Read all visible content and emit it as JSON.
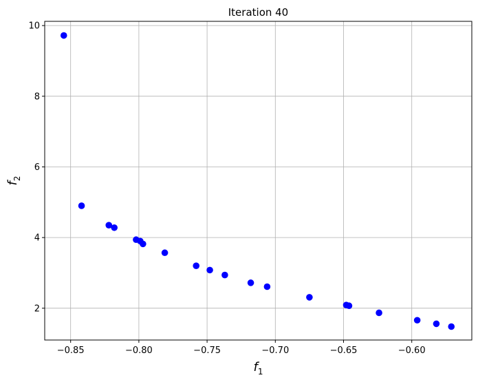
{
  "chart_data": {
    "type": "scatter",
    "title": "Iteration 40",
    "xlabel": {
      "base": "f",
      "sub": "1"
    },
    "ylabel": {
      "base": "f",
      "sub": "2"
    },
    "xlim": [
      -0.869,
      -0.556
    ],
    "ylim": [
      1.1,
      10.12
    ],
    "xticks": [
      -0.85,
      -0.8,
      -0.75,
      -0.7,
      -0.65,
      -0.6
    ],
    "xtick_labels": [
      "−0.85",
      "−0.80",
      "−0.75",
      "−0.70",
      "−0.65",
      "−0.60"
    ],
    "yticks": [
      2,
      4,
      6,
      8,
      10
    ],
    "ytick_labels": [
      "2",
      "4",
      "6",
      "8",
      "10"
    ],
    "grid": true,
    "marker_color": "#0000ff",
    "points": [
      {
        "x": -0.855,
        "y": 9.72
      },
      {
        "x": -0.842,
        "y": 4.9
      },
      {
        "x": -0.822,
        "y": 4.35
      },
      {
        "x": -0.818,
        "y": 4.28
      },
      {
        "x": -0.802,
        "y": 3.94
      },
      {
        "x": -0.799,
        "y": 3.9
      },
      {
        "x": -0.797,
        "y": 3.82
      },
      {
        "x": -0.781,
        "y": 3.57
      },
      {
        "x": -0.758,
        "y": 3.2
      },
      {
        "x": -0.748,
        "y": 3.08
      },
      {
        "x": -0.737,
        "y": 2.94
      },
      {
        "x": -0.718,
        "y": 2.72
      },
      {
        "x": -0.706,
        "y": 2.61
      },
      {
        "x": -0.675,
        "y": 2.31
      },
      {
        "x": -0.648,
        "y": 2.09
      },
      {
        "x": -0.646,
        "y": 2.07
      },
      {
        "x": -0.624,
        "y": 1.87
      },
      {
        "x": -0.596,
        "y": 1.66
      },
      {
        "x": -0.582,
        "y": 1.56
      },
      {
        "x": -0.571,
        "y": 1.48
      }
    ]
  }
}
